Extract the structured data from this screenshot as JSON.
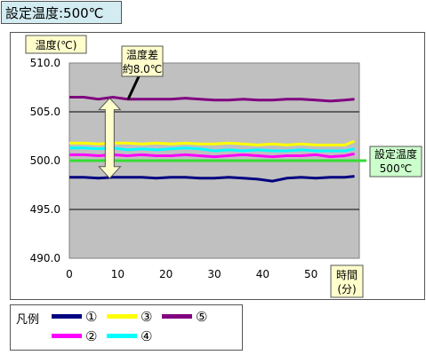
{
  "header": {
    "title": "設定温度:500℃"
  },
  "chart_data": {
    "type": "line",
    "ylabel": "温度(℃)",
    "xlabel": "時間\n(分)",
    "ylim": [
      490,
      510
    ],
    "xlim": [
      0,
      60
    ],
    "yticks": [
      "510.0",
      "505.0",
      "500.0",
      "495.0",
      "490.0"
    ],
    "xticks": [
      "0",
      "10",
      "20",
      "30",
      "40",
      "50"
    ],
    "plot_background": "#c0c0c0",
    "grid": "horizontal",
    "x": [
      0,
      3,
      6,
      9,
      12,
      15,
      18,
      21,
      24,
      27,
      30,
      33,
      36,
      39,
      42,
      45,
      48,
      51,
      54,
      57,
      59
    ],
    "series": [
      {
        "name": "①",
        "color": "#000080",
        "values": [
          498.3,
          498.3,
          498.2,
          498.3,
          498.3,
          498.3,
          498.2,
          498.3,
          498.3,
          498.2,
          498.2,
          498.3,
          498.2,
          498.1,
          497.9,
          498.2,
          498.3,
          498.2,
          498.3,
          498.3,
          498.4
        ]
      },
      {
        "name": "②",
        "color": "#ff00ff",
        "values": [
          500.6,
          500.6,
          500.5,
          500.6,
          500.5,
          500.6,
          500.5,
          500.5,
          500.6,
          500.5,
          500.4,
          500.5,
          500.6,
          500.5,
          500.4,
          500.5,
          500.5,
          500.6,
          500.4,
          500.5,
          500.7
        ]
      },
      {
        "name": "③",
        "color": "#ffff00",
        "values": [
          501.8,
          501.8,
          501.7,
          501.8,
          501.8,
          501.7,
          501.8,
          501.7,
          501.8,
          501.7,
          501.7,
          501.8,
          501.7,
          501.6,
          501.7,
          501.6,
          501.7,
          501.6,
          501.6,
          501.6,
          502.0
        ]
      },
      {
        "name": "④",
        "color": "#00ffff",
        "values": [
          501.3,
          501.3,
          501.2,
          501.3,
          501.1,
          501.2,
          501.1,
          501.2,
          501.3,
          501.2,
          501.0,
          501.1,
          501.0,
          501.1,
          501.0,
          501.0,
          501.1,
          501.0,
          501.0,
          501.0,
          501.2
        ]
      },
      {
        "name": "⑤",
        "color": "#800080",
        "values": [
          506.5,
          506.5,
          506.3,
          506.5,
          506.3,
          506.3,
          506.3,
          506.3,
          506.4,
          506.3,
          506.2,
          506.2,
          506.3,
          506.2,
          506.2,
          506.3,
          506.3,
          506.2,
          506.1,
          506.2,
          506.3
        ]
      }
    ],
    "reference_line": {
      "value": 500,
      "color": "#33dd33",
      "label": "設定温度\n500℃"
    },
    "annotation": {
      "text": "温度差\n約8.0℃",
      "from": 498.2,
      "to": 506.4,
      "x": 10
    },
    "legend": {
      "title": "凡例",
      "placement": "bottom-left"
    }
  }
}
